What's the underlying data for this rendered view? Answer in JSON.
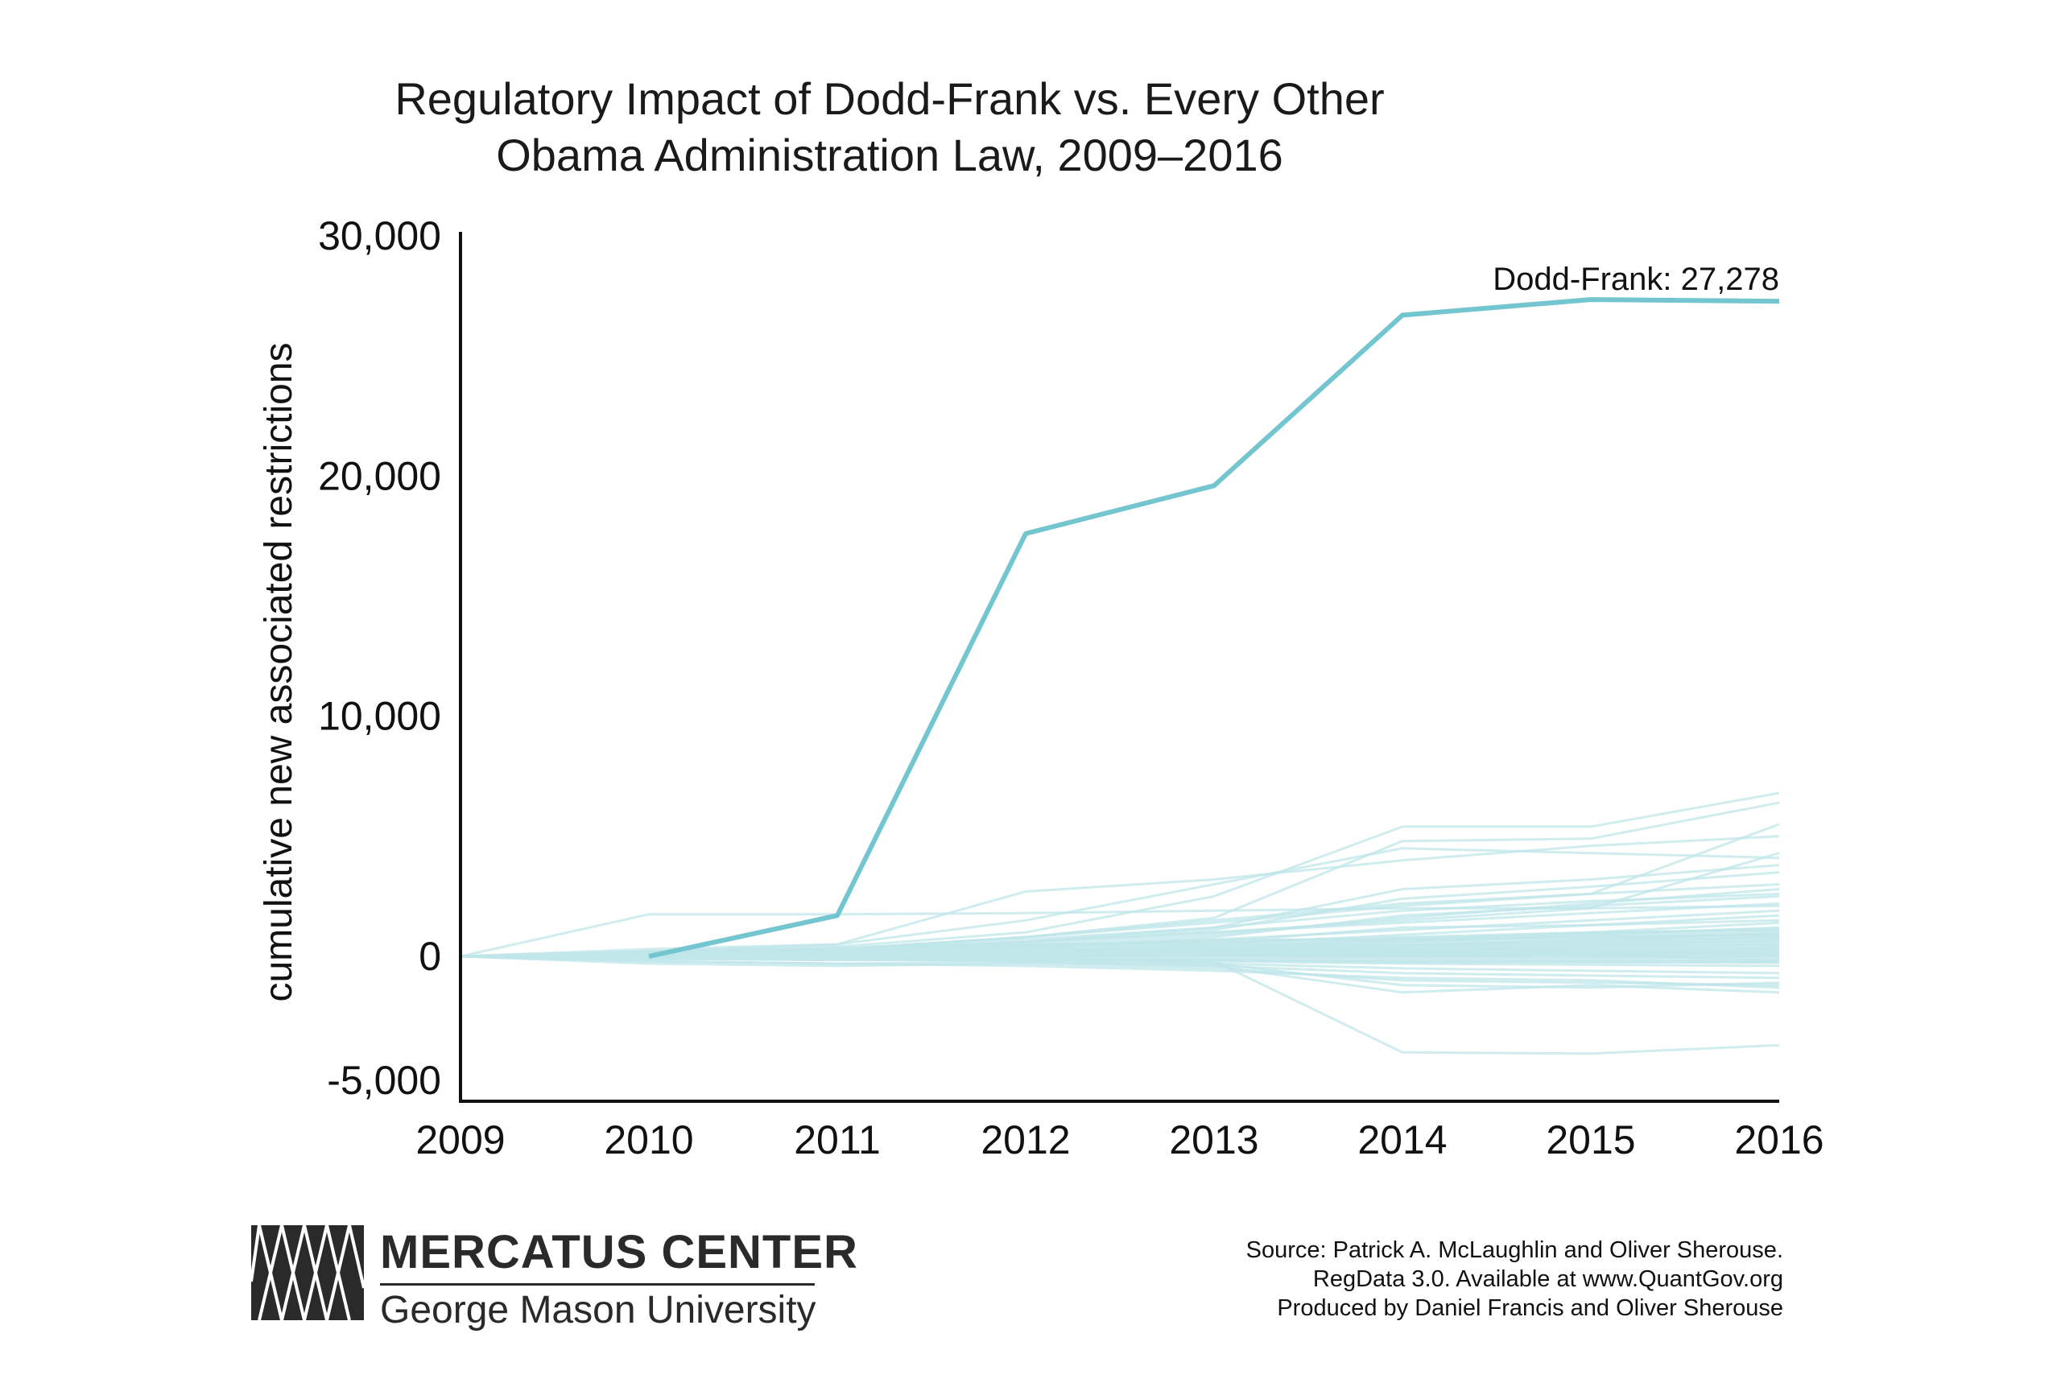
{
  "chart_data": {
    "type": "line",
    "title": [
      "Regulatory Impact of Dodd-Frank vs. Every Other",
      "Obama Administration Law, 2009–2016"
    ],
    "ylabel": "cumulative new associated restrictions",
    "xlabel": "",
    "x": [
      2009,
      2010,
      2011,
      2012,
      2013,
      2014,
      2015,
      2016
    ],
    "x_tick_labels": [
      "2009",
      "2010",
      "2011",
      "2012",
      "2013",
      "2014",
      "2015",
      "2016"
    ],
    "y_ticks": [
      30000,
      20000,
      10000,
      0,
      -5000
    ],
    "y_tick_labels": [
      "30,000",
      "20,000",
      "10,000",
      "0",
      "-5,000"
    ],
    "ylim": [
      -6000,
      30000
    ],
    "xlim": [
      2009,
      2016
    ],
    "grid": false,
    "highlight_series": {
      "name": "Dodd-Frank",
      "x": [
        2010,
        2011,
        2012,
        2013,
        2014,
        2015,
        2016
      ],
      "values": [
        0,
        1700,
        17600,
        19600,
        26700,
        27350,
        27278
      ],
      "color": "#73c5cf",
      "annotation": "Dodd-Frank: 27,278"
    },
    "background_series": {
      "color": "#bfe6e9",
      "values": [
        [
          0,
          1750,
          1750,
          1800,
          1900,
          2000,
          2000,
          2100
        ],
        [
          0,
          300,
          500,
          2700,
          3200,
          4000,
          4600,
          5000
        ],
        [
          0,
          200,
          400,
          1000,
          2500,
          5400,
          5400,
          6800
        ],
        [
          0,
          100,
          300,
          800,
          1600,
          4800,
          4900,
          6400
        ],
        [
          0,
          100,
          300,
          800,
          1500,
          2200,
          2600,
          5500
        ],
        [
          0,
          200,
          500,
          1500,
          3000,
          4500,
          4300,
          4100
        ],
        [
          0,
          100,
          200,
          500,
          1000,
          1500,
          2000,
          4300
        ],
        [
          0,
          100,
          300,
          700,
          1200,
          2800,
          3200,
          3800
        ],
        [
          0,
          50,
          200,
          600,
          1100,
          2400,
          2900,
          3500
        ],
        [
          0,
          100,
          300,
          800,
          1400,
          2100,
          2600,
          3000
        ],
        [
          0,
          50,
          150,
          400,
          900,
          1600,
          2200,
          2800
        ],
        [
          0,
          0,
          100,
          300,
          800,
          1700,
          2100,
          2500
        ],
        [
          0,
          100,
          300,
          600,
          1000,
          1400,
          1800,
          2200
        ],
        [
          0,
          50,
          150,
          350,
          700,
          1100,
          1500,
          1900
        ],
        [
          0,
          0,
          100,
          250,
          500,
          900,
          1300,
          1700
        ],
        [
          0,
          50,
          100,
          200,
          400,
          700,
          1000,
          1400
        ],
        [
          0,
          0,
          50,
          150,
          300,
          600,
          900,
          1200
        ],
        [
          0,
          100,
          200,
          400,
          600,
          800,
          1000,
          1100
        ],
        [
          0,
          0,
          50,
          100,
          250,
          450,
          700,
          950
        ],
        [
          0,
          50,
          100,
          200,
          300,
          450,
          600,
          800
        ],
        [
          0,
          0,
          50,
          100,
          200,
          350,
          500,
          650
        ],
        [
          0,
          0,
          0,
          50,
          150,
          250,
          400,
          500
        ],
        [
          0,
          50,
          100,
          150,
          200,
          250,
          300,
          350
        ],
        [
          0,
          0,
          0,
          50,
          100,
          150,
          200,
          250
        ],
        [
          0,
          0,
          50,
          50,
          100,
          100,
          150,
          150
        ],
        [
          0,
          0,
          0,
          0,
          50,
          50,
          100,
          100
        ],
        [
          0,
          0,
          0,
          0,
          0,
          0,
          0,
          0
        ],
        [
          0,
          -50,
          -100,
          -100,
          -150,
          -200,
          -200,
          -250
        ],
        [
          0,
          0,
          -50,
          -100,
          -200,
          -300,
          -350,
          -400
        ],
        [
          0,
          -100,
          -150,
          -200,
          -300,
          -500,
          -600,
          -700
        ],
        [
          0,
          -200,
          -300,
          -250,
          -400,
          -700,
          -800,
          -900
        ],
        [
          0,
          -300,
          -400,
          -300,
          -500,
          -1000,
          -1100,
          -1200
        ],
        [
          0,
          0,
          0,
          -100,
          -300,
          -1200,
          -1300,
          -1100
        ],
        [
          0,
          -100,
          -100,
          -200,
          -400,
          -1500,
          -1200,
          -1500
        ],
        [
          0,
          -200,
          -300,
          -400,
          -600,
          -900,
          -1000,
          -1300
        ],
        [
          0,
          0,
          -50,
          -100,
          -200,
          -4000,
          -4050,
          -3700
        ],
        [
          0,
          100,
          200,
          300,
          300,
          200,
          100,
          -200
        ],
        [
          0,
          50,
          100,
          400,
          700,
          700,
          800,
          900
        ],
        [
          0,
          200,
          300,
          500,
          600,
          1200,
          1300,
          1500
        ],
        [
          0,
          100,
          200,
          600,
          1200,
          1900,
          2300,
          2600
        ]
      ]
    }
  },
  "footer": {
    "logo_name": "MERCATUS CENTER",
    "logo_sub": "George Mason University",
    "source_lines": [
      "Source: Patrick A. McLaughlin and Oliver Sherouse.",
      "RegData 3.0. Available at www.QuantGov.org",
      "Produced by Daniel Francis and Oliver Sherouse"
    ]
  }
}
